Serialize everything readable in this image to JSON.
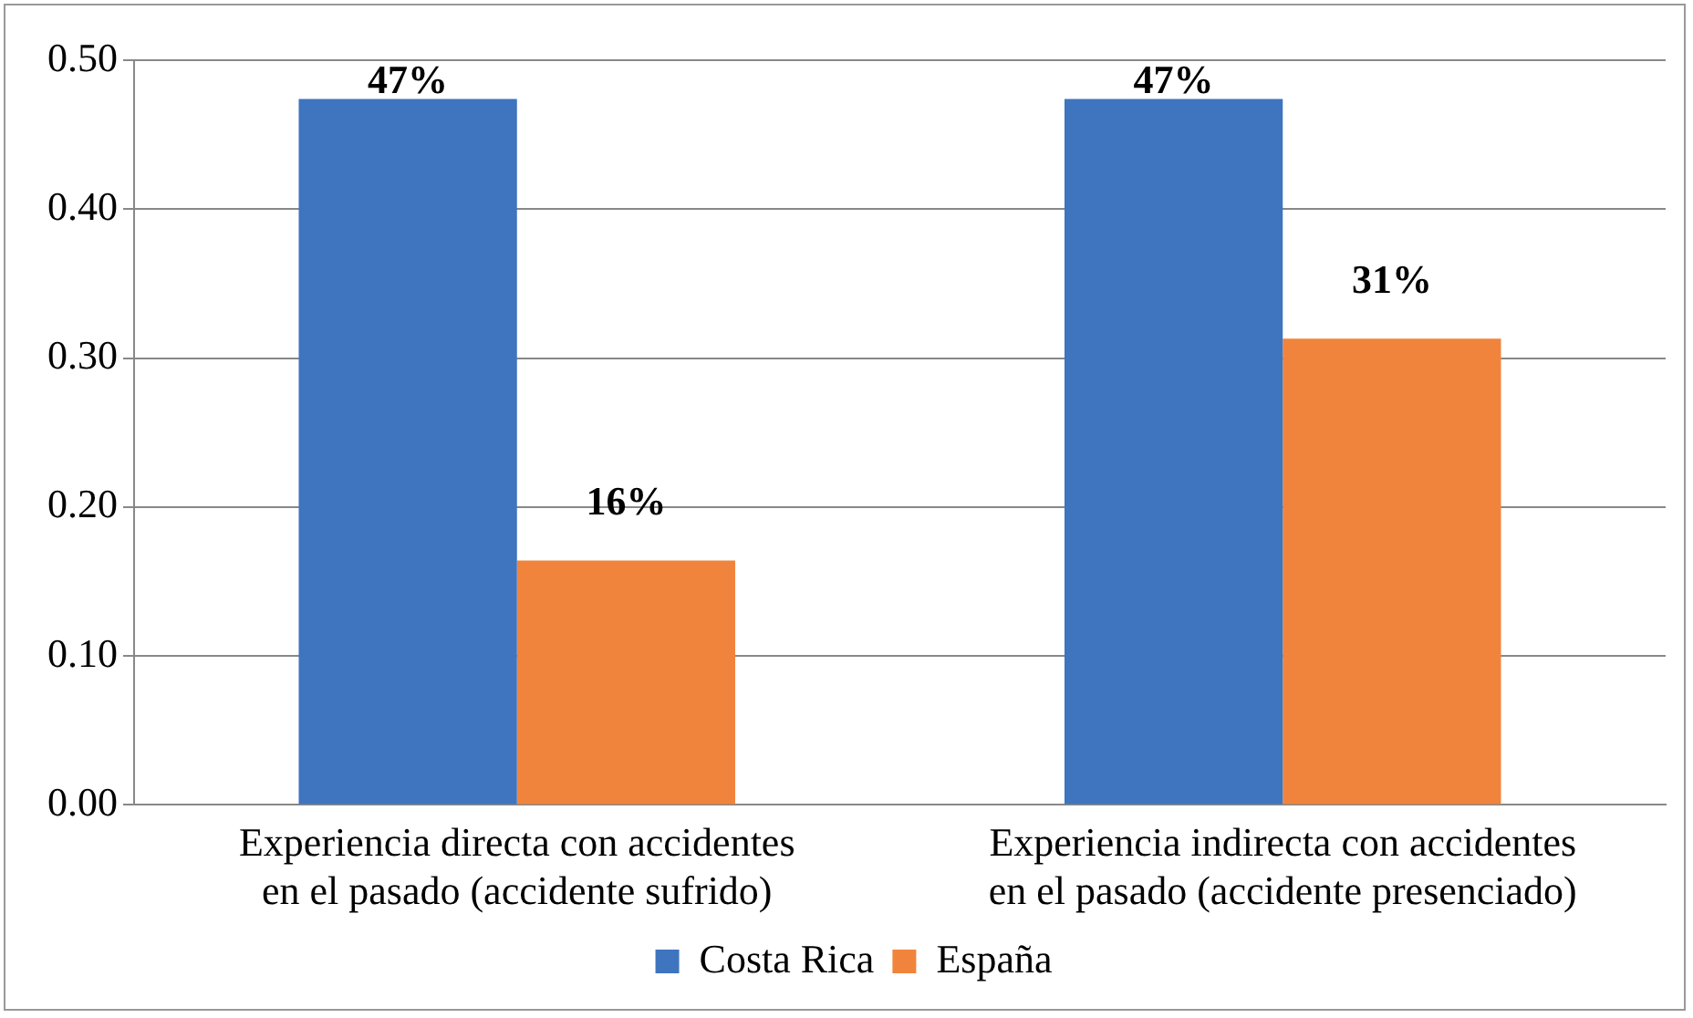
{
  "chart_data": {
    "type": "bar",
    "categories": [
      "Experiencia directa con accidentes en el pasado (accidente sufrido)",
      "Experiencia indirecta con accidentes en el pasado (accidente presenciado)"
    ],
    "series": [
      {
        "name": "Costa Rica",
        "color": "#3f74bf",
        "values": [
          0.474,
          0.474
        ],
        "value_labels": [
          "47%",
          "47%"
        ]
      },
      {
        "name": "España",
        "color": "#f0843c",
        "values": [
          0.164,
          0.313
        ],
        "value_labels": [
          "16%",
          "31%"
        ]
      }
    ],
    "ylim": [
      0,
      0.5
    ],
    "yticks": [
      {
        "value": 0,
        "label": "0.00"
      },
      {
        "value": 0.1,
        "label": "0.10"
      },
      {
        "value": 0.2,
        "label": "0.20"
      },
      {
        "value": 0.3,
        "label": "0.30"
      },
      {
        "value": 0.4,
        "label": "0.40"
      },
      {
        "value": 0.5,
        "label": "0.50"
      }
    ],
    "grid": "y",
    "legend": "bottom"
  }
}
